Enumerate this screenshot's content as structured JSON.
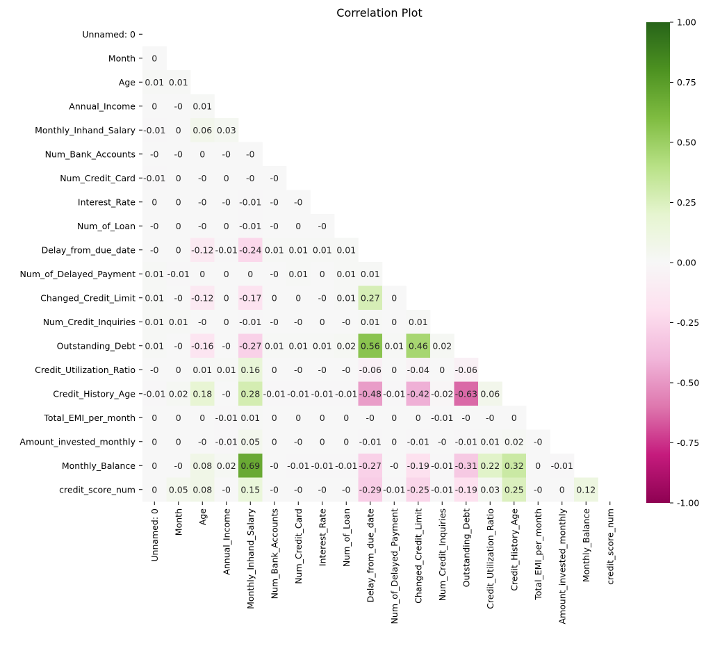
{
  "chart_data": {
    "type": "heatmap",
    "title": "Correlation Plot",
    "variables": [
      "Unnamed: 0",
      "Month",
      "Age",
      "Annual_Income",
      "Monthly_Inhand_Salary",
      "Num_Bank_Accounts",
      "Num_Credit_Card",
      "Interest_Rate",
      "Num_of_Loan",
      "Delay_from_due_date",
      "Num_of_Delayed_Payment",
      "Changed_Credit_Limit",
      "Num_Credit_Inquiries",
      "Outstanding_Debt",
      "Credit_Utilization_Ratio",
      "Credit_History_Age",
      "Total_EMI_per_month",
      "Amount_invested_monthly",
      "Monthly_Balance",
      "credit_score_num"
    ],
    "lower_triangle": [
      [],
      [
        "0"
      ],
      [
        "0.01",
        "0.01"
      ],
      [
        "0",
        "-0",
        "0.01"
      ],
      [
        "-0.01",
        "0",
        "0.06",
        "0.03"
      ],
      [
        "-0",
        "-0",
        "0",
        "-0",
        "-0"
      ],
      [
        "-0.01",
        "0",
        "-0",
        "0",
        "-0",
        "-0"
      ],
      [
        "0",
        "0",
        "-0",
        "-0",
        "-0.01",
        "-0",
        "-0"
      ],
      [
        "-0",
        "0",
        "-0",
        "0",
        "-0.01",
        "-0",
        "0",
        "-0"
      ],
      [
        "-0",
        "0",
        "-0.12",
        "-0.01",
        "-0.24",
        "0.01",
        "0.01",
        "0.01",
        "0.01"
      ],
      [
        "0.01",
        "-0.01",
        "0",
        "0",
        "0",
        "-0",
        "0.01",
        "0",
        "0.01",
        "0.01"
      ],
      [
        "0.01",
        "-0",
        "-0.12",
        "0",
        "-0.17",
        "0",
        "0",
        "-0",
        "0.01",
        "0.27",
        "0"
      ],
      [
        "0.01",
        "0.01",
        "-0",
        "0",
        "-0.01",
        "-0",
        "-0",
        "0",
        "-0",
        "0.01",
        "0",
        "0.01"
      ],
      [
        "0.01",
        "-0",
        "-0.16",
        "-0",
        "-0.27",
        "0.01",
        "0.01",
        "0.01",
        "0.02",
        "0.56",
        "0.01",
        "0.46",
        "0.02"
      ],
      [
        "-0",
        "0",
        "0.01",
        "0.01",
        "0.16",
        "0",
        "-0",
        "-0",
        "-0",
        "-0.06",
        "0",
        "-0.04",
        "0",
        "-0.06"
      ],
      [
        "-0.01",
        "0.02",
        "0.18",
        "-0",
        "0.28",
        "-0.01",
        "-0.01",
        "-0.01",
        "-0.01",
        "-0.48",
        "-0.01",
        "-0.42",
        "-0.02",
        "-0.63",
        "0.06"
      ],
      [
        "0",
        "0",
        "0",
        "-0.01",
        "0.01",
        "0",
        "0",
        "0",
        "0",
        "-0",
        "0",
        "0",
        "-0.01",
        "-0",
        "-0",
        "0"
      ],
      [
        "0",
        "0",
        "-0",
        "-0.01",
        "0.05",
        "0",
        "-0",
        "0",
        "0",
        "-0.01",
        "0",
        "-0.01",
        "-0",
        "-0.01",
        "0.01",
        "0.02",
        "-0"
      ],
      [
        "0",
        "-0",
        "0.08",
        "0.02",
        "0.69",
        "-0",
        "-0.01",
        "-0.01",
        "-0.01",
        "-0.27",
        "-0",
        "-0.19",
        "-0.01",
        "-0.31",
        "0.22",
        "0.32",
        "0",
        "-0.01"
      ],
      [
        "0",
        "0.05",
        "0.08",
        "-0",
        "0.15",
        "-0",
        "-0",
        "-0",
        "-0",
        "-0.29",
        "-0.01",
        "-0.25",
        "-0.01",
        "-0.19",
        "0.03",
        "0.25",
        "-0",
        "0",
        "0.12"
      ]
    ],
    "colorbar": {
      "vmin": -1,
      "vmax": 1,
      "ticks": [
        "1.00",
        "0.75",
        "0.50",
        "0.25",
        "0.00",
        "-0.25",
        "-0.50",
        "-0.75",
        "-1.00"
      ],
      "colormap": "PiYG",
      "colors": [
        "#8e0152",
        "#c51b7d",
        "#de77ae",
        "#f1b6da",
        "#fde0ef",
        "#f7f7f7",
        "#e6f5d0",
        "#b8e186",
        "#7fbc41",
        "#4d9221",
        "#276419"
      ]
    },
    "masked": "upper-triangle-including-diagonal"
  }
}
